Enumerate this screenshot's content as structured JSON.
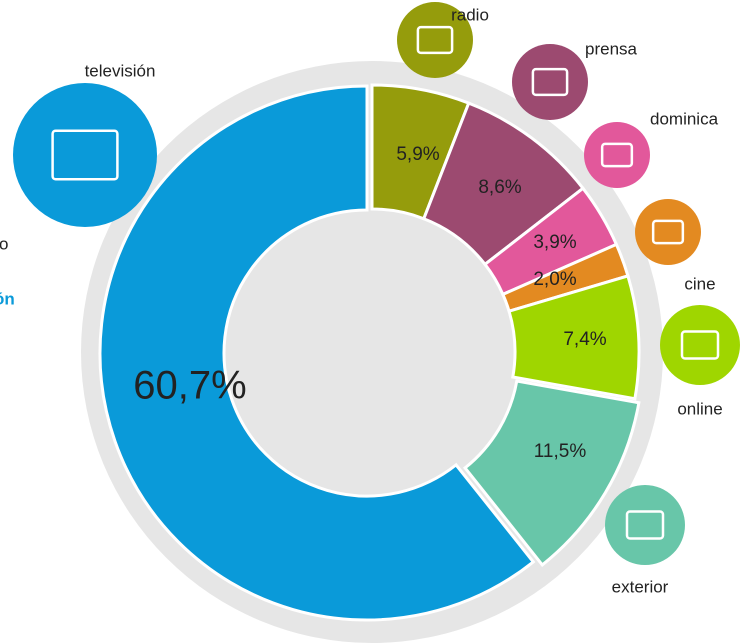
{
  "chart_data": {
    "type": "pie",
    "categories": [
      "radio",
      "prensa",
      "dominica",
      "cine",
      "online",
      "exterior",
      "televisión"
    ],
    "values": [
      5.9,
      8.6,
      3.9,
      2.0,
      7.4,
      11.5,
      60.7
    ],
    "value_labels": [
      "5,9%",
      "8,6%",
      "3,9%",
      "2,0%",
      "7,4%",
      "11,5%",
      "60,7%"
    ],
    "colors": [
      "#959c0c",
      "#9c4a70",
      "#e2589b",
      "#e38a21",
      "#9fd600",
      "#68c6a9",
      "#0a9ad9"
    ],
    "annotations": [
      "o",
      "ón"
    ]
  }
}
